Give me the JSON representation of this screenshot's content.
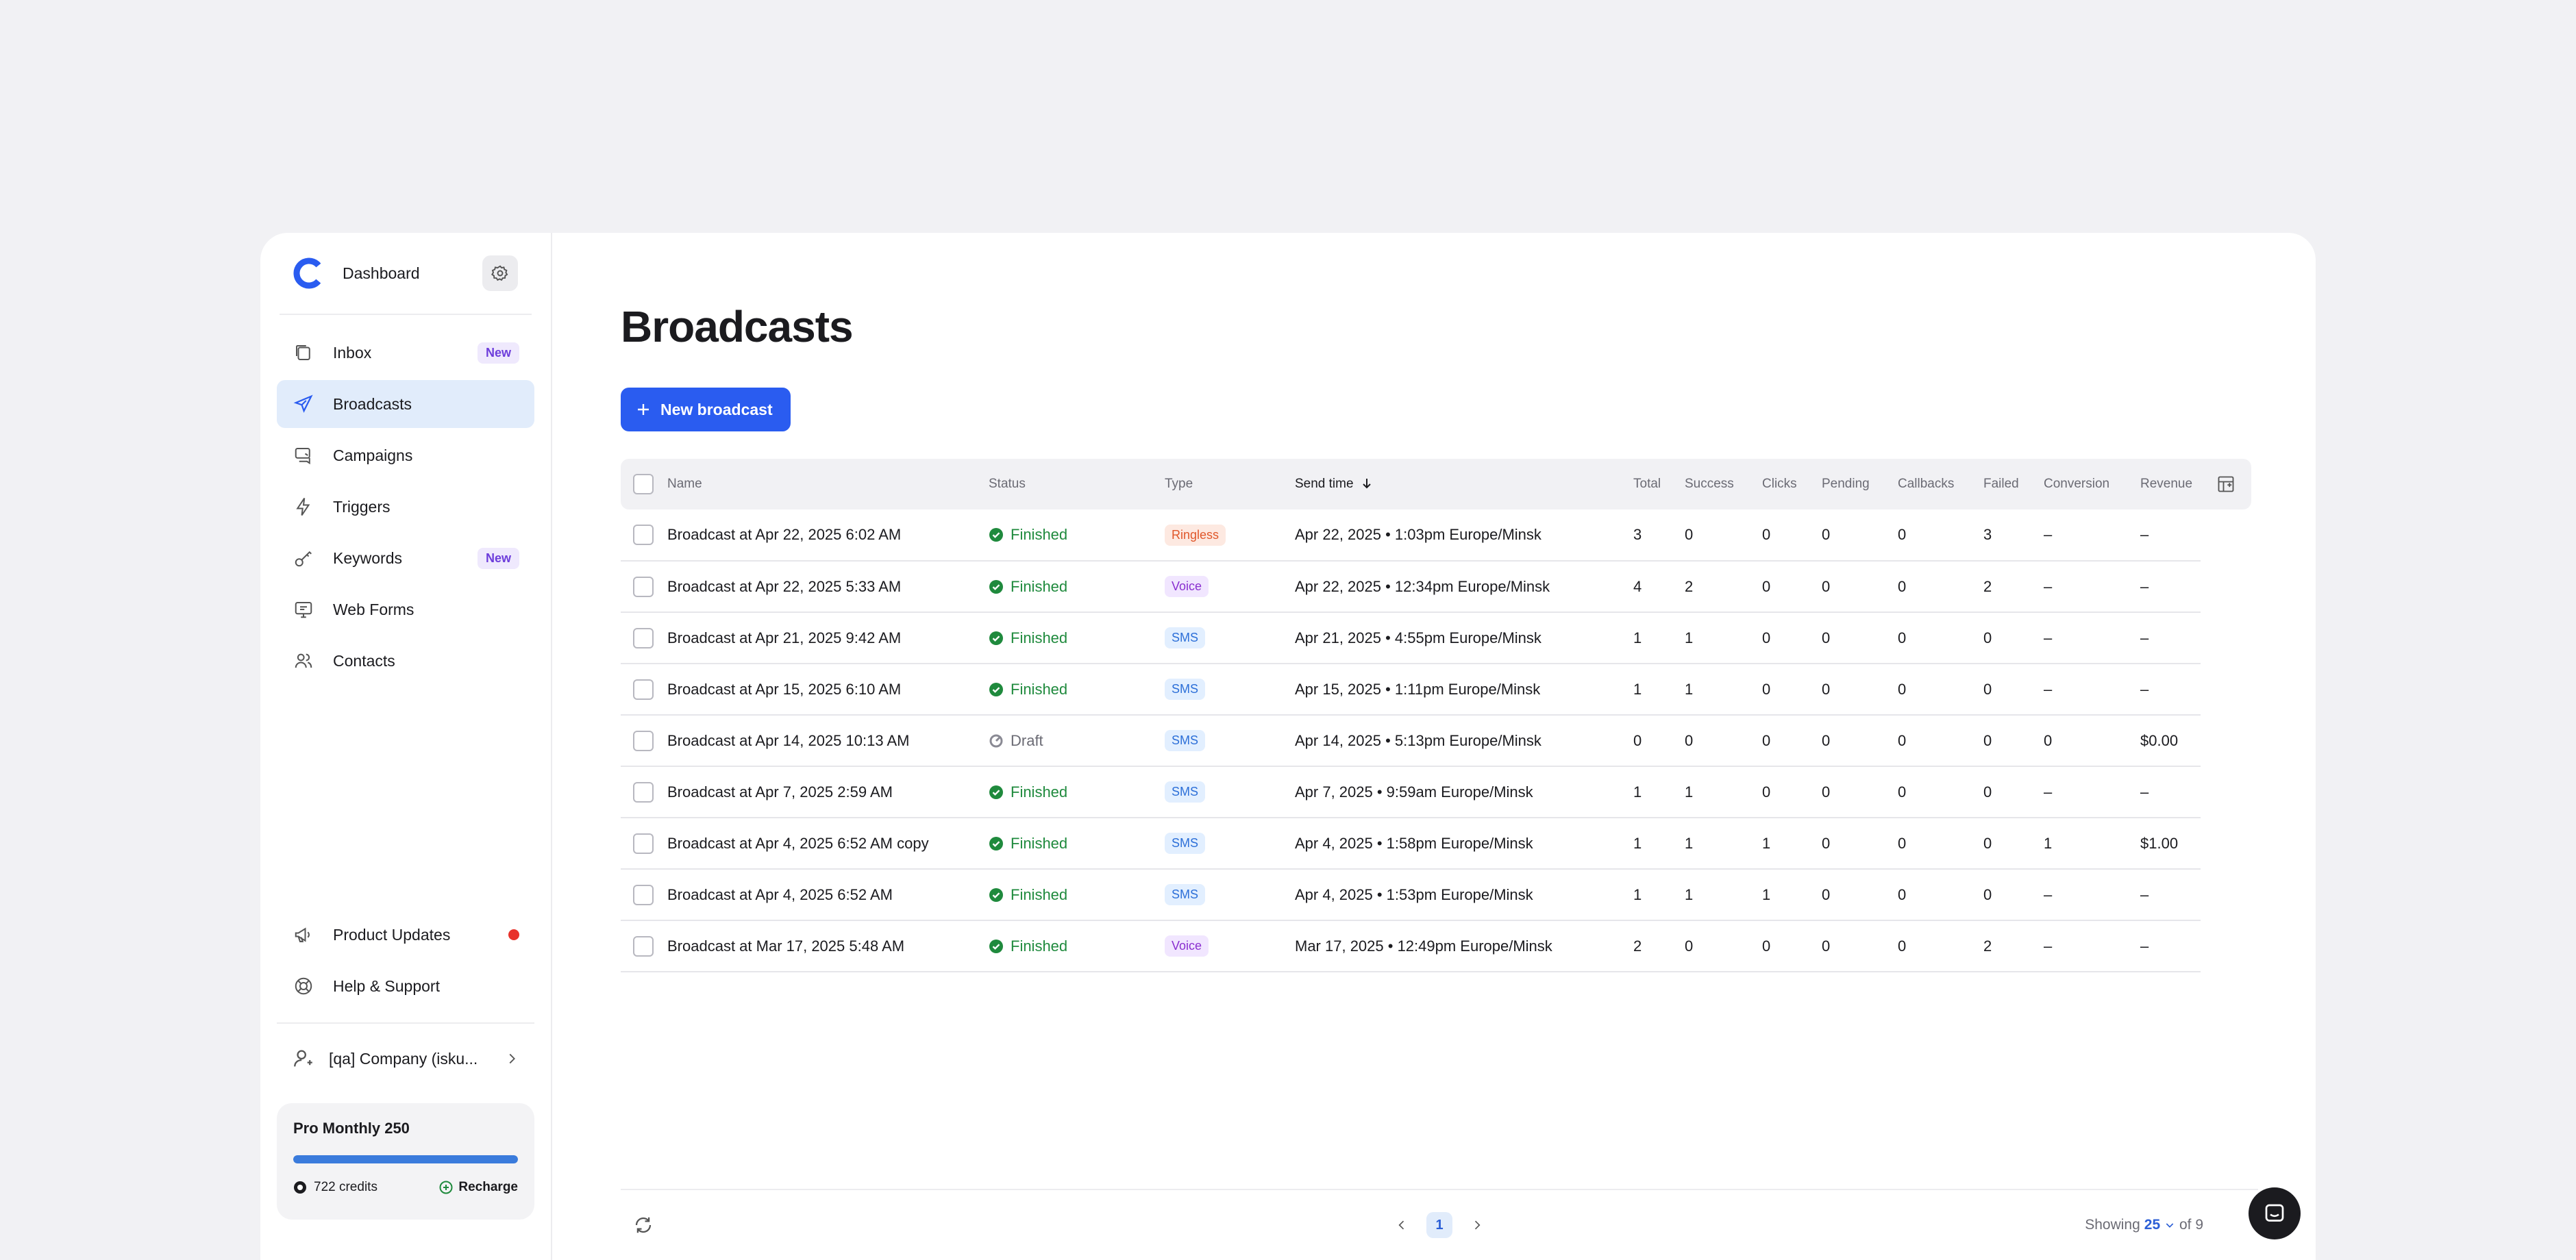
{
  "sidebar": {
    "dashboard_label": "Dashboard",
    "items": [
      {
        "label": "Inbox",
        "badge": "New",
        "icon": "inbox-icon"
      },
      {
        "label": "Broadcasts",
        "badge": "",
        "icon": "send-icon"
      },
      {
        "label": "Campaigns",
        "badge": "",
        "icon": "campaign-icon"
      },
      {
        "label": "Triggers",
        "badge": "",
        "icon": "lightning-icon"
      },
      {
        "label": "Keywords",
        "badge": "New",
        "icon": "key-icon"
      },
      {
        "label": "Web Forms",
        "badge": "",
        "icon": "monitor-icon"
      },
      {
        "label": "Contacts",
        "badge": "",
        "icon": "users-icon"
      }
    ],
    "bottom_items": [
      {
        "label": "Product Updates",
        "icon": "megaphone-icon"
      },
      {
        "label": "Help & Support",
        "icon": "lifebuoy-icon"
      }
    ],
    "company": "[qa] Company (isku...",
    "plan": {
      "title": "Pro Monthly 250",
      "credits": "722 credits",
      "recharge": "Recharge",
      "usage_fraction": 1.0
    }
  },
  "main": {
    "title": "Broadcasts",
    "new_button": "New broadcast",
    "columns": [
      "Name",
      "Status",
      "Type",
      "Send time",
      "Total",
      "Success",
      "Clicks",
      "Pending",
      "Callbacks",
      "Failed",
      "Conversion",
      "Revenue"
    ],
    "sorted_column": "Send time",
    "rows": [
      {
        "name": "Broadcast at Apr 22, 2025 6:02 AM",
        "status": "Finished",
        "type": "Ringless",
        "send_time": "Apr 22, 2025 • 1:03pm Europe/Minsk",
        "total": "3",
        "success": "0",
        "clicks": "0",
        "pending": "0",
        "callbacks": "0",
        "failed": "3",
        "conversion": "–",
        "revenue": "–"
      },
      {
        "name": "Broadcast at Apr 22, 2025 5:33 AM",
        "status": "Finished",
        "type": "Voice",
        "send_time": "Apr 22, 2025 • 12:34pm Europe/Minsk",
        "total": "4",
        "success": "2",
        "clicks": "0",
        "pending": "0",
        "callbacks": "0",
        "failed": "2",
        "conversion": "–",
        "revenue": "–"
      },
      {
        "name": "Broadcast at Apr 21, 2025 9:42 AM",
        "status": "Finished",
        "type": "SMS",
        "send_time": "Apr 21, 2025 • 4:55pm Europe/Minsk",
        "total": "1",
        "success": "1",
        "clicks": "0",
        "pending": "0",
        "callbacks": "0",
        "failed": "0",
        "conversion": "–",
        "revenue": "–"
      },
      {
        "name": "Broadcast at Apr 15, 2025 6:10 AM",
        "status": "Finished",
        "type": "SMS",
        "send_time": "Apr 15, 2025 • 1:11pm Europe/Minsk",
        "total": "1",
        "success": "1",
        "clicks": "0",
        "pending": "0",
        "callbacks": "0",
        "failed": "0",
        "conversion": "–",
        "revenue": "–"
      },
      {
        "name": "Broadcast at Apr 14, 2025 10:13 AM",
        "status": "Draft",
        "type": "SMS",
        "send_time": "Apr 14, 2025 • 5:13pm Europe/Minsk",
        "total": "0",
        "success": "0",
        "clicks": "0",
        "pending": "0",
        "callbacks": "0",
        "failed": "0",
        "conversion": "0",
        "revenue": "$0.00"
      },
      {
        "name": "Broadcast at Apr 7, 2025 2:59 AM",
        "status": "Finished",
        "type": "SMS",
        "send_time": "Apr 7, 2025 • 9:59am Europe/Minsk",
        "total": "1",
        "success": "1",
        "clicks": "0",
        "pending": "0",
        "callbacks": "0",
        "failed": "0",
        "conversion": "–",
        "revenue": "–"
      },
      {
        "name": "Broadcast at Apr 4, 2025 6:52 AM copy",
        "status": "Finished",
        "type": "SMS",
        "send_time": "Apr 4, 2025 • 1:58pm Europe/Minsk",
        "total": "1",
        "success": "1",
        "clicks": "1",
        "pending": "0",
        "callbacks": "0",
        "failed": "0",
        "conversion": "1",
        "revenue": "$1.00"
      },
      {
        "name": "Broadcast at Apr 4, 2025 6:52 AM",
        "status": "Finished",
        "type": "SMS",
        "send_time": "Apr 4, 2025 • 1:53pm Europe/Minsk",
        "total": "1",
        "success": "1",
        "clicks": "1",
        "pending": "0",
        "callbacks": "0",
        "failed": "0",
        "conversion": "–",
        "revenue": "–"
      },
      {
        "name": "Broadcast at Mar 17, 2025 5:48 AM",
        "status": "Finished",
        "type": "Voice",
        "send_time": "Mar 17, 2025 • 12:49pm Europe/Minsk",
        "total": "2",
        "success": "0",
        "clicks": "0",
        "pending": "0",
        "callbacks": "0",
        "failed": "2",
        "conversion": "–",
        "revenue": "–"
      }
    ]
  },
  "footer": {
    "page": "1",
    "showing_label": "Showing",
    "per_page": "25",
    "of_label": "of 9"
  },
  "colors": {
    "accent": "#2a5cf0",
    "finished": "#1f8a3d",
    "active_nav": "#e1ecfb"
  }
}
